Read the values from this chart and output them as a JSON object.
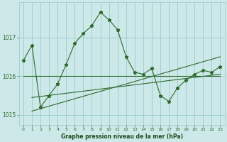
{
  "hours": [
    0,
    1,
    2,
    3,
    4,
    5,
    6,
    7,
    8,
    9,
    10,
    11,
    12,
    13,
    14,
    15,
    16,
    17,
    18,
    19,
    20,
    21,
    22,
    23
  ],
  "main_pressure": [
    1016.4,
    1016.8,
    1015.2,
    1015.5,
    1015.8,
    1016.3,
    1016.85,
    1017.1,
    1017.3,
    1017.65,
    1017.45,
    1017.2,
    1016.5,
    1016.1,
    1016.05,
    1016.2,
    1015.5,
    1015.35,
    1015.7,
    1015.9,
    1016.05,
    1016.15,
    1016.1,
    1016.25
  ],
  "trend1_x": [
    0,
    23
  ],
  "trend1_y": [
    1016.0,
    1016.0
  ],
  "trend2_x": [
    1,
    23
  ],
  "trend2_y": [
    1015.1,
    1016.5
  ],
  "trend3_x": [
    1,
    23
  ],
  "trend3_y": [
    1015.45,
    1016.05
  ],
  "ylim": [
    1014.75,
    1017.9
  ],
  "yticks": [
    1015,
    1016,
    1017
  ],
  "xticks": [
    0,
    1,
    2,
    3,
    4,
    5,
    6,
    7,
    8,
    9,
    10,
    11,
    12,
    13,
    14,
    15,
    16,
    17,
    18,
    19,
    20,
    21,
    22,
    23
  ],
  "xlim": [
    -0.5,
    23.5
  ],
  "line_color": "#2d6a2d",
  "bg_color": "#cce8e8",
  "grid_color": "#99cccc",
  "xlabel": "Graphe pression niveau de la mer (hPa)",
  "xlabel_color": "#1a4d1a",
  "tick_color": "#2d6a2d",
  "marker": "*",
  "markersize": 3.5,
  "linewidth": 0.8
}
